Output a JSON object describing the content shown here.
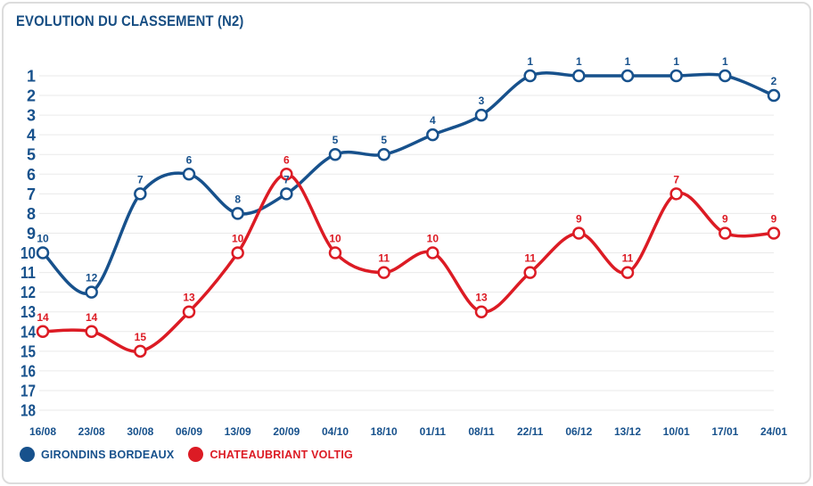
{
  "colors": {
    "blue": "#17518C",
    "red": "#DC1B24",
    "title": "#174E83",
    "grid": "#EAEAEA",
    "card_border": "#DCDCDC",
    "marker_fill": "#FFFFFF"
  },
  "chart_data": {
    "type": "line",
    "line_style": "spline",
    "marker": "open-circle",
    "title": "EVOLUTION DU CLASSEMENT (N2)",
    "x_labels": [
      "16/08",
      "23/08",
      "30/08",
      "06/09",
      "13/09",
      "20/09",
      "04/10",
      "18/10",
      "01/11",
      "08/11",
      "22/11",
      "06/12",
      "13/12",
      "10/01",
      "17/01",
      "24/01"
    ],
    "y_ticks": [
      1,
      2,
      3,
      4,
      5,
      6,
      7,
      8,
      9,
      10,
      11,
      12,
      13,
      14,
      15,
      16,
      17,
      18
    ],
    "y_axis_inverted": true,
    "grid": "horizontal",
    "data_labels": true,
    "legend_position": "bottom-left",
    "series": [
      {
        "name": "GIRONDINS BORDEAUX",
        "color": "#17518C",
        "values": [
          10,
          12,
          7,
          6,
          8,
          7,
          5,
          5,
          4,
          3,
          1,
          1,
          1,
          1,
          1,
          2
        ]
      },
      {
        "name": "CHATEAUBRIANT VOLTIG",
        "color": "#DC1B24",
        "values": [
          14,
          14,
          15,
          13,
          10,
          6,
          10,
          11,
          10,
          13,
          11,
          9,
          11,
          7,
          9,
          9
        ]
      }
    ]
  }
}
